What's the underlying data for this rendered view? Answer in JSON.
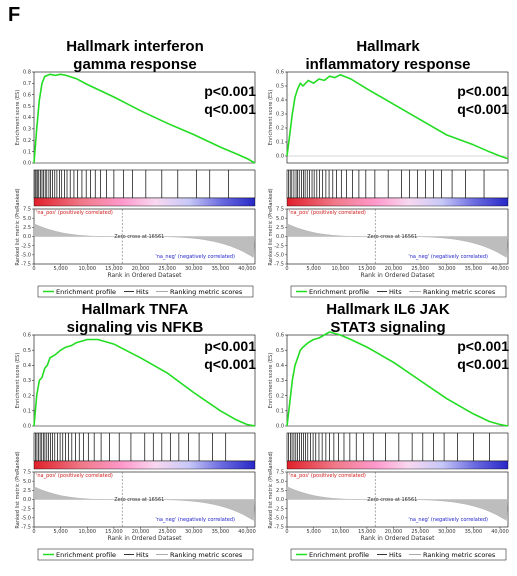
{
  "figure_label": "F",
  "chart_data": [
    {
      "type": "line",
      "title": "Hallmark interferon gamma response",
      "title_lines": [
        "Hallmark interferon",
        "gamma response"
      ],
      "stats": [
        "p<0.001",
        "q<0.001"
      ],
      "ylabel": "Enrichment score (ES)",
      "ylim": [
        0,
        0.8
      ],
      "yticks": [
        "0.0",
        "0.1",
        "0.2",
        "0.3",
        "0.4",
        "0.5",
        "0.6",
        "0.7",
        "0.8"
      ],
      "series": [
        {
          "name": "Enrichment profile",
          "x": [
            0,
            500,
            1000,
            1500,
            2000,
            3000,
            4000,
            5000,
            6000,
            8000,
            10000,
            15000,
            20000,
            25000,
            30000,
            35000,
            38000,
            40000,
            41500
          ],
          "values": [
            0,
            0.3,
            0.55,
            0.7,
            0.76,
            0.78,
            0.77,
            0.78,
            0.77,
            0.74,
            0.69,
            0.58,
            0.46,
            0.35,
            0.25,
            0.14,
            0.08,
            0.04,
            0
          ]
        }
      ],
      "hits": [
        200,
        400,
        700,
        900,
        1200,
        1500,
        1800,
        2100,
        2400,
        2800,
        3100,
        3500,
        3900,
        4300,
        4800,
        5200,
        5700,
        6200,
        6800,
        7500,
        8200,
        9000,
        9800,
        10600,
        11500,
        12500,
        13600,
        15000,
        16800,
        18500,
        21000,
        24000,
        27000,
        30500,
        33000,
        36500
      ],
      "metric": {
        "ylabel": "Ranked list metric (PreRanked)",
        "ylim": [
          -7.5,
          7.5
        ],
        "yticks": [
          "7.5",
          "5.0",
          "2.5",
          "0.0",
          "-2.5",
          "-5.0",
          "-7.5"
        ],
        "max": 3.5,
        "min": -6
      },
      "xlabel": "Rank in Ordered Dataset",
      "xlim": [
        0,
        41500
      ],
      "xticks": [
        0,
        5000,
        10000,
        15000,
        20000,
        25000,
        30000,
        35000,
        40000
      ],
      "xtick_labels": [
        "0",
        "5,000",
        "10,000",
        "15,000",
        "20,000",
        "25,000",
        "30,000",
        "35,000",
        "40,000"
      ],
      "zero_cross": 16561,
      "zero_cross_label": "Zero cross at 16561",
      "pos_label": "'na_pos' (positively correlated)",
      "neg_label": "'na_neg' (negatively correlated)",
      "legend": [
        "Enrichment profile",
        "Hits",
        "Ranking metric scores"
      ],
      "colors": {
        "profile": "#22dd22",
        "pos": "#e0202a",
        "mid": "#ff99cc",
        "neg": "#2828c8"
      }
    },
    {
      "type": "line",
      "title": "Hallmark inflammatory response",
      "title_lines": [
        "Hallmark",
        "inflammatory response"
      ],
      "stats": [
        "p<0.001",
        "q<0.001"
      ],
      "ylabel": "Enrichment score (ES)",
      "ylim": [
        -0.05,
        0.6
      ],
      "yticks": [
        "0.0",
        "0.1",
        "0.2",
        "0.3",
        "0.4",
        "0.5",
        "0.6"
      ],
      "series": [
        {
          "name": "Enrichment profile",
          "x": [
            0,
            500,
            1000,
            1500,
            2000,
            2500,
            3000,
            4000,
            5000,
            6000,
            7000,
            8000,
            9000,
            10000,
            12000,
            15000,
            20000,
            25000,
            30000,
            35000,
            38000,
            40000,
            41500
          ],
          "values": [
            0,
            0.15,
            0.3,
            0.42,
            0.48,
            0.52,
            0.5,
            0.54,
            0.52,
            0.55,
            0.54,
            0.57,
            0.56,
            0.58,
            0.55,
            0.48,
            0.37,
            0.26,
            0.15,
            0.08,
            0.03,
            0.0,
            -0.02
          ]
        }
      ],
      "hits": [
        300,
        600,
        900,
        1300,
        1700,
        2000,
        2300,
        2700,
        3100,
        3400,
        3800,
        4200,
        4700,
        5100,
        5600,
        6100,
        6700,
        7300,
        7900,
        8600,
        9300,
        10200,
        11200,
        12300,
        13500,
        14800,
        16500,
        19000,
        21500,
        23000,
        24500,
        26000,
        27500,
        29000,
        31000,
        33500,
        37000
      ],
      "metric": {
        "ylabel": "Ranked list metric (PreRanked)",
        "ylim": [
          -7.5,
          7.5
        ],
        "yticks": [
          "7.5",
          "5.0",
          "2.5",
          "0.0",
          "-2.5",
          "-5.0",
          "-7.5"
        ],
        "max": 3.5,
        "min": -6
      },
      "xlabel": "Rank in Ordered Dataset",
      "xlim": [
        0,
        41500
      ],
      "xticks": [
        0,
        5000,
        10000,
        15000,
        20000,
        25000,
        30000,
        35000,
        40000
      ],
      "xtick_labels": [
        "0",
        "5,000",
        "10,000",
        "15,000",
        "20,000",
        "25,000",
        "30,000",
        "35,000",
        "40,000"
      ],
      "zero_cross": 16561,
      "zero_cross_label": "Zero cross at 16561",
      "pos_label": "'na_pos' (positively correlated)",
      "neg_label": "'na_neg' (negatively correlated)",
      "legend": [
        "Enrichment profile",
        "Hits",
        "Ranking metric scores"
      ],
      "colors": {
        "profile": "#22dd22",
        "pos": "#e0202a",
        "mid": "#ff99cc",
        "neg": "#2828c8"
      }
    },
    {
      "type": "line",
      "title": "Hallmark TNFA signaling vis NFKB",
      "title_lines": [
        "Hallmark TNFA",
        "signaling vis NFKB"
      ],
      "stats": [
        "p<0.001",
        "q<0.001"
      ],
      "ylabel": "Enrichment score (ES)",
      "ylim": [
        0,
        0.6
      ],
      "yticks": [
        "0.0",
        "0.1",
        "0.2",
        "0.3",
        "0.4",
        "0.5",
        "0.6"
      ],
      "series": [
        {
          "name": "Enrichment profile",
          "x": [
            0,
            500,
            1000,
            1500,
            2000,
            2500,
            3000,
            4000,
            5000,
            6000,
            7000,
            8000,
            9000,
            10000,
            12000,
            15000,
            20000,
            25000,
            30000,
            35000,
            38000,
            40000,
            41500
          ],
          "values": [
            0,
            0.2,
            0.3,
            0.32,
            0.38,
            0.4,
            0.45,
            0.47,
            0.5,
            0.52,
            0.53,
            0.55,
            0.56,
            0.57,
            0.57,
            0.54,
            0.45,
            0.35,
            0.22,
            0.1,
            0.04,
            0.01,
            0
          ]
        }
      ],
      "hits": [
        250,
        550,
        850,
        1150,
        1450,
        1750,
        2050,
        2400,
        2750,
        3100,
        3500,
        3900,
        4400,
        4900,
        5400,
        5900,
        6500,
        7100,
        7800,
        8500,
        9300,
        10200,
        11300,
        12600,
        14200,
        16000,
        18200,
        20800,
        22400,
        24000,
        25600,
        27200,
        29000,
        31000,
        33500,
        36000
      ],
      "metric": {
        "ylabel": "Ranked list metric (PreRanked)",
        "ylim": [
          -7.5,
          7.5
        ],
        "yticks": [
          "7.5",
          "5.0",
          "2.5",
          "0.0",
          "-2.5",
          "-5.0",
          "-7.5"
        ],
        "max": 3.5,
        "min": -6
      },
      "xlabel": "Rank in Ordered Dataset",
      "xlim": [
        0,
        41500
      ],
      "xticks": [
        0,
        5000,
        10000,
        15000,
        20000,
        25000,
        30000,
        35000,
        40000
      ],
      "xtick_labels": [
        "0",
        "5,000",
        "10,000",
        "15,000",
        "20,000",
        "25,000",
        "30,000",
        "35,000",
        "40,000"
      ],
      "zero_cross": 16561,
      "zero_cross_label": "Zero cross at 16561",
      "pos_label": "'na_pos' (positively correlated)",
      "neg_label": "'na_neg' (negatively correlated)",
      "legend": [
        "Enrichment profile",
        "Hits",
        "Ranking metric scores"
      ],
      "colors": {
        "profile": "#22dd22",
        "pos": "#e0202a",
        "mid": "#ff99cc",
        "neg": "#2828c8"
      }
    },
    {
      "type": "line",
      "title": "Hallmark IL6 JAK STAT3 signaling",
      "title_lines": [
        "Hallmark IL6 JAK",
        "STAT3 signaling"
      ],
      "stats": [
        "p<0.001",
        "q<0.001"
      ],
      "ylabel": "Enrichment score (ES)",
      "ylim": [
        0,
        0.6
      ],
      "yticks": [
        "0.0",
        "0.1",
        "0.2",
        "0.3",
        "0.4",
        "0.5",
        "0.6"
      ],
      "series": [
        {
          "name": "Enrichment profile",
          "x": [
            0,
            500,
            1000,
            1500,
            2000,
            2500,
            3000,
            4000,
            5000,
            6000,
            7000,
            8000,
            9000,
            10000,
            12000,
            15000,
            20000,
            25000,
            30000,
            35000,
            38000,
            40000,
            41500
          ],
          "values": [
            0,
            0.15,
            0.3,
            0.4,
            0.45,
            0.5,
            0.52,
            0.55,
            0.57,
            0.58,
            0.6,
            0.62,
            0.61,
            0.6,
            0.57,
            0.52,
            0.42,
            0.3,
            0.18,
            0.08,
            0.03,
            0.01,
            0
          ]
        }
      ],
      "hits": [
        300,
        650,
        950,
        1300,
        1650,
        2000,
        2350,
        2700,
        3100,
        3500,
        3900,
        4400,
        4900,
        5400,
        6000,
        6600,
        7300,
        8000,
        8800,
        9700,
        10700,
        11800,
        13000,
        14400,
        16200,
        18500,
        21000,
        23500,
        25500,
        27500,
        29500,
        32000,
        35000,
        38000
      ],
      "metric": {
        "ylabel": "Ranked list metric (PreRanked)",
        "ylim": [
          -7.5,
          7.5
        ],
        "yticks": [
          "7.5",
          "5.0",
          "2.5",
          "0.0",
          "-2.5",
          "-5.0",
          "-7.5"
        ],
        "max": 3.5,
        "min": -6
      },
      "xlabel": "Rank in Ordered Dataset",
      "xlim": [
        0,
        41500
      ],
      "xticks": [
        0,
        5000,
        10000,
        15000,
        20000,
        25000,
        30000,
        35000,
        40000
      ],
      "xtick_labels": [
        "0",
        "5,000",
        "10,000",
        "15,000",
        "20,000",
        "25,000",
        "30,000",
        "35,000",
        "40,000"
      ],
      "zero_cross": 16561,
      "zero_cross_label": "Zero cross at 16561",
      "pos_label": "'na_pos' (positively correlated)",
      "neg_label": "'na_neg' (negatively correlated)",
      "legend": [
        "Enrichment profile",
        "Hits",
        "Ranking metric scores"
      ],
      "colors": {
        "profile": "#22dd22",
        "pos": "#e0202a",
        "mid": "#ff99cc",
        "neg": "#2828c8"
      }
    }
  ]
}
